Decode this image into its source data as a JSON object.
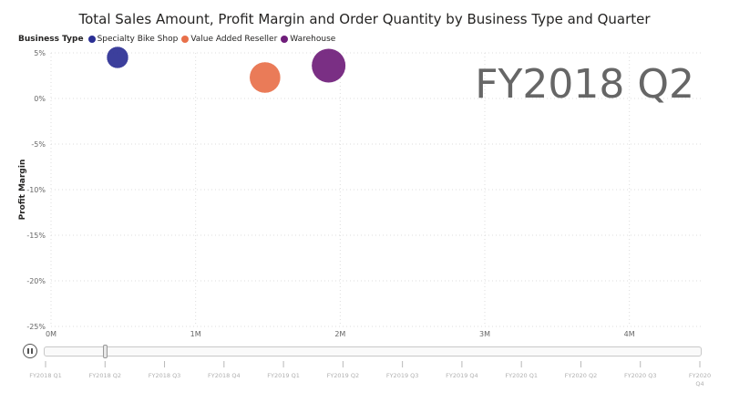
{
  "chart_data": {
    "type": "scatter",
    "title": "Total Sales Amount, Profit Margin and Order Quantity by Business Type and Quarter",
    "xlabel": "",
    "ylabel": "Profit Margin",
    "xlim": [
      0,
      4500000
    ],
    "ylim": [
      -0.25,
      0.05
    ],
    "x_ticks": [
      "0M",
      "1M",
      "2M",
      "3M",
      "4M"
    ],
    "y_ticks": [
      "5%",
      "0%",
      "-5%",
      "-10%",
      "-15%",
      "-20%",
      "-25%"
    ],
    "grid": true,
    "legend_title": "Business Type",
    "legend_position": "top-left",
    "watermark": "FY2018 Q2",
    "series": [
      {
        "name": "Specialty Bike Shop",
        "color": "#2b2f94",
        "x": 460000,
        "y": 0.045,
        "size_relative": 0.35
      },
      {
        "name": "Value Added Reseller",
        "color": "#e8704a",
        "x": 1480000,
        "y": 0.023,
        "size_relative": 0.65
      },
      {
        "name": "Warehouse",
        "color": "#6f1d7a",
        "x": 1920000,
        "y": 0.036,
        "size_relative": 0.75
      }
    ]
  },
  "play_axis": {
    "labels": [
      "FY2018 Q1",
      "FY2018 Q2",
      "FY2018 Q3",
      "FY2018 Q4",
      "FY2019 Q1",
      "FY2019 Q2",
      "FY2019 Q3",
      "FY2019 Q4",
      "FY2020 Q1",
      "FY2020 Q2",
      "FY2020 Q3",
      "FY2020 Q4"
    ],
    "current": "FY2018 Q2",
    "current_index": 1
  }
}
